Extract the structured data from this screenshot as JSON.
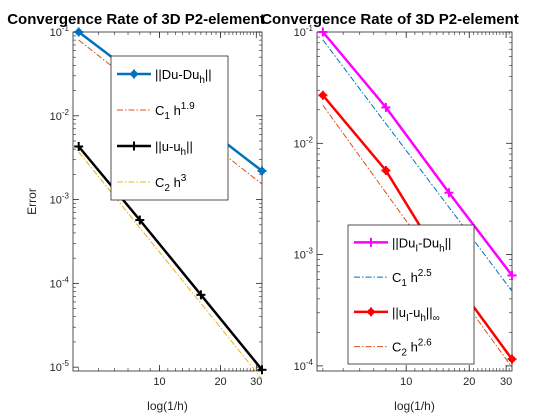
{
  "chart_data": [
    {
      "type": "line",
      "title": "Convergence Rate of 3D P2-element",
      "xlabel": "log(1/h)",
      "ylabel": "Error",
      "xscale": "log",
      "yscale": "log",
      "xlim": [
        3.75,
        32
      ],
      "ylim": [
        9e-06,
        0.1
      ],
      "xticks": [
        10,
        20,
        30
      ],
      "xticklabels": [
        "10",
        "20",
        "30"
      ],
      "yticks": [
        1e-05,
        0.0001,
        0.001,
        0.01,
        0.1
      ],
      "ytick_base": "10",
      "ytick_exponents": [
        "-5",
        "-4",
        "-3",
        "-2",
        "-1"
      ],
      "series": [
        {
          "name": "||Du-Du_h||",
          "label_parts": [
            "||Du-Du",
            "h",
            "||"
          ],
          "color": "#0072BD",
          "style": "solid",
          "marker": "asterisk",
          "width": 2.5,
          "x": [
            4,
            8,
            16,
            32
          ],
          "y": [
            0.1,
            0.028,
            0.008,
            0.0022
          ]
        },
        {
          "name": "C_1 h^1.9",
          "label_parts": [
            "C",
            "1",
            " h",
            "1.9"
          ],
          "color": "#D95319",
          "style": "dashdot",
          "marker": "none",
          "width": 1,
          "x": [
            4,
            8,
            16,
            32
          ],
          "y": [
            0.08,
            0.0214,
            0.0057,
            0.00153
          ]
        },
        {
          "name": "||u-u_h||",
          "label_parts": [
            "||u-u",
            "h",
            "||"
          ],
          "color": "#000000",
          "style": "solid",
          "marker": "plus",
          "width": 2.5,
          "x": [
            4,
            8,
            16,
            32
          ],
          "y": [
            0.0043,
            0.00057,
            7.3e-05,
            9.3e-06
          ]
        },
        {
          "name": "C_2 h^3",
          "label_parts": [
            "C",
            "2",
            " h",
            "3"
          ],
          "color": "#EDB120",
          "style": "dashdot",
          "marker": "none",
          "width": 1,
          "x": [
            4,
            8,
            16,
            32
          ],
          "y": [
            0.0037,
            0.00046,
            5.78e-05,
            7.2e-06
          ]
        }
      ]
    },
    {
      "type": "line",
      "title": "Convergence Rate of 3D P2-element",
      "xlabel": "log(1/h)",
      "ylabel": "",
      "xscale": "log",
      "yscale": "log",
      "xlim": [
        3.75,
        32
      ],
      "ylim": [
        9e-05,
        0.1
      ],
      "xticks": [
        10,
        20,
        30
      ],
      "xticklabels": [
        "10",
        "20",
        "30"
      ],
      "yticks": [
        0.0001,
        0.001,
        0.01,
        0.1
      ],
      "ytick_base": "10",
      "ytick_exponents": [
        "-4",
        "-3",
        "-2",
        "-1"
      ],
      "series": [
        {
          "name": "||Du_I-Du_h||",
          "label_parts": [
            "||Du",
            "I",
            "-Du",
            "h",
            "||"
          ],
          "color": "#FF00FF",
          "style": "solid",
          "marker": "plus",
          "width": 2.5,
          "x": [
            4,
            8,
            16,
            32
          ],
          "y": [
            0.1,
            0.021,
            0.0036,
            0.00065
          ]
        },
        {
          "name": "C_1 h^2.5",
          "label_parts": [
            "C",
            "1",
            " h",
            "2.5"
          ],
          "color": "#0072BD",
          "style": "dashdot",
          "marker": "none",
          "width": 1,
          "x": [
            4,
            8,
            16,
            32
          ],
          "y": [
            0.085,
            0.015,
            0.00266,
            0.00047
          ]
        },
        {
          "name": "||u_I-u_h||_inf",
          "label_parts": [
            "||u",
            "I",
            "-u",
            "h",
            "||",
            "∞"
          ],
          "color": "#FF0000",
          "style": "solid",
          "marker": "asterisk",
          "width": 2.5,
          "x": [
            4,
            8,
            16,
            32
          ],
          "y": [
            0.027,
            0.0057,
            0.00068,
            0.000115
          ]
        },
        {
          "name": "C_2 h^2.6",
          "label_parts": [
            "C",
            "2",
            " h",
            "2.6"
          ],
          "color": "#D95319",
          "style": "dashdot",
          "marker": "none",
          "width": 1,
          "x": [
            4,
            8,
            16,
            32
          ],
          "y": [
            0.022,
            0.0036,
            0.00059,
            9.7e-05
          ]
        }
      ]
    }
  ]
}
